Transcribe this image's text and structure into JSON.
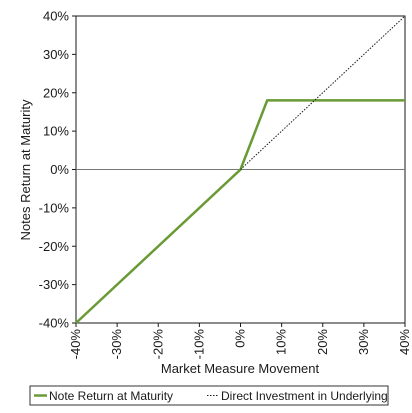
{
  "chart_data": {
    "type": "line",
    "title": "",
    "xlabel": "Market Measure Movement",
    "ylabel": "Notes Return at Maturity",
    "xlim": [
      -40,
      40
    ],
    "ylim": [
      -40,
      40
    ],
    "x_ticks": [
      -40,
      -30,
      -20,
      -10,
      0,
      10,
      20,
      30,
      40
    ],
    "y_ticks": [
      -40,
      -30,
      -20,
      -10,
      0,
      10,
      20,
      30,
      40
    ],
    "x_tick_labels": [
      "-40%",
      "-30%",
      "-20%",
      "-10%",
      "0%",
      "10%",
      "20%",
      "30%",
      "40%"
    ],
    "y_tick_labels": [
      "-40%",
      "-30%",
      "-20%",
      "-10%",
      "0%",
      "10%",
      "20%",
      "30%",
      "40%"
    ],
    "grid": false,
    "zero_line": true,
    "legend_position": "bottom",
    "colors": {
      "note": "#6a9a35",
      "direct": "#1a1a1a",
      "axis": "#1a1a1a",
      "zero": "#777777"
    },
    "series": [
      {
        "name": "Note Return at Maturity",
        "style": "solid",
        "x": [
          -40,
          0,
          6.5,
          40
        ],
        "y": [
          -40,
          0,
          18,
          18
        ]
      },
      {
        "name": "Direct Investment in Underlying",
        "style": "dotted",
        "x": [
          0,
          40
        ],
        "y": [
          0,
          40
        ]
      }
    ]
  }
}
